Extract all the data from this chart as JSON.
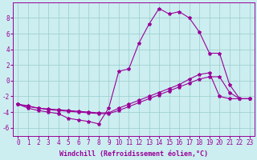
{
  "line1_x": [
    0,
    1,
    2,
    3,
    4,
    5,
    6,
    7,
    8,
    9,
    10,
    11,
    12,
    13,
    14,
    15,
    16,
    17,
    18,
    19,
    20,
    21,
    22,
    23
  ],
  "line1_y": [
    -3.0,
    -3.5,
    -3.8,
    -4.0,
    -4.2,
    -4.8,
    -5.0,
    -5.2,
    -5.5,
    -3.5,
    1.2,
    1.5,
    4.8,
    7.2,
    9.2,
    8.5,
    8.8,
    8.0,
    6.2,
    3.5,
    3.5,
    -0.5,
    -2.3,
    -2.3
  ],
  "line2_x": [
    0,
    1,
    2,
    3,
    4,
    5,
    6,
    7,
    8,
    9,
    10,
    11,
    12,
    13,
    14,
    15,
    16,
    17,
    18,
    19,
    20,
    21,
    22,
    23
  ],
  "line2_y": [
    -3.0,
    -3.3,
    -3.5,
    -3.6,
    -3.7,
    -3.8,
    -3.9,
    -4.0,
    -4.1,
    -4.1,
    -3.5,
    -3.0,
    -2.5,
    -2.0,
    -1.5,
    -1.0,
    -0.5,
    0.2,
    0.8,
    1.0,
    -2.0,
    -2.3,
    -2.3,
    -2.3
  ],
  "line3_x": [
    0,
    1,
    2,
    3,
    4,
    5,
    6,
    7,
    8,
    9,
    10,
    11,
    12,
    13,
    14,
    15,
    16,
    17,
    18,
    19,
    20,
    21,
    22,
    23
  ],
  "line3_y": [
    -3.0,
    -3.2,
    -3.5,
    -3.7,
    -3.8,
    -3.9,
    -4.0,
    -4.1,
    -4.2,
    -4.2,
    -3.8,
    -3.3,
    -2.8,
    -2.3,
    -1.8,
    -1.3,
    -0.8,
    -0.3,
    0.2,
    0.5,
    0.5,
    -1.5,
    -2.3,
    -2.3
  ],
  "color": "#990099",
  "bg_color": "#cceef0",
  "grid_color": "#99cccc",
  "xlabel": "Windchill (Refroidissement éolien,°C)",
  "xlim": [
    -0.5,
    23.5
  ],
  "ylim": [
    -7.0,
    10.0
  ],
  "xticks": [
    0,
    1,
    2,
    3,
    4,
    5,
    6,
    7,
    8,
    9,
    10,
    11,
    12,
    13,
    14,
    15,
    16,
    17,
    18,
    19,
    20,
    21,
    22,
    23
  ],
  "yticks": [
    -6,
    -4,
    -2,
    0,
    2,
    4,
    6,
    8
  ],
  "xlabel_fontsize": 6.0,
  "tick_fontsize": 5.5,
  "marker": "*",
  "markersize": 3.0,
  "linewidth": 0.8
}
